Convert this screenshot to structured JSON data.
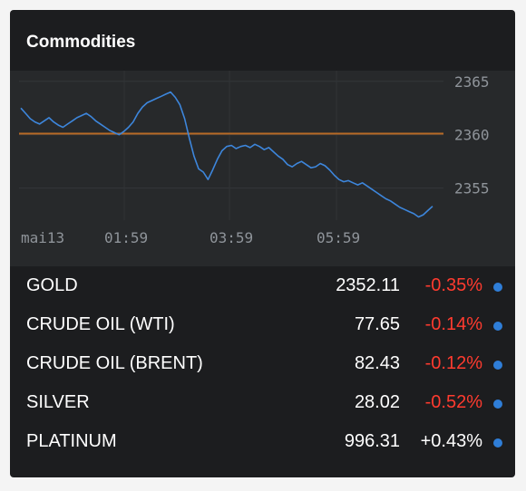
{
  "widget": {
    "title": "Commodities"
  },
  "colors": {
    "line": "#3d86dc",
    "reference": "#b86a26",
    "negative": "#ff3b2f",
    "positive": "#ffffff",
    "dot": "#2f7ed8"
  },
  "chart_data": {
    "type": "line",
    "ylim": [
      2352,
      2366
    ],
    "y_ticks": [
      "2365",
      "2360",
      "2355"
    ],
    "x_ticks": [
      "mai13",
      "01:59",
      "03:59",
      "05:59"
    ],
    "reference_value": 2360.1,
    "series": [
      {
        "values": [
          2362.5,
          2362.0,
          2361.5,
          2361.2,
          2361.0,
          2361.3,
          2361.6,
          2361.2,
          2360.9,
          2360.7,
          2361.0,
          2361.3,
          2361.6,
          2361.8,
          2362.0,
          2361.7,
          2361.3,
          2361.0,
          2360.7,
          2360.4,
          2360.2,
          2360.0,
          2360.3,
          2360.7,
          2361.2,
          2362.0,
          2362.6,
          2363.0,
          2363.2,
          2363.4,
          2363.6,
          2363.8,
          2364.0,
          2363.5,
          2362.8,
          2361.5,
          2359.7,
          2358.0,
          2356.8,
          2356.5,
          2355.8,
          2356.7,
          2357.7,
          2358.5,
          2358.9,
          2359.0,
          2358.7,
          2358.9,
          2359.0,
          2358.8,
          2359.1,
          2358.9,
          2358.6,
          2358.8,
          2358.4,
          2358.0,
          2357.7,
          2357.2,
          2357.0,
          2357.3,
          2357.5,
          2357.2,
          2356.9,
          2357.0,
          2357.3,
          2357.1,
          2356.7,
          2356.2,
          2355.8,
          2355.6,
          2355.7,
          2355.5,
          2355.3,
          2355.5,
          2355.2,
          2354.9,
          2354.6,
          2354.3,
          2354.0,
          2353.8,
          2353.5,
          2353.2,
          2353.0,
          2352.8,
          2352.6,
          2352.3,
          2352.5,
          2352.9,
          2353.3
        ]
      }
    ]
  },
  "rows": [
    {
      "name": "GOLD",
      "price": "2352.11",
      "change": "-0.35%",
      "direction": "down"
    },
    {
      "name": "CRUDE OIL (WTI)",
      "price": "77.65",
      "change": "-0.14%",
      "direction": "down"
    },
    {
      "name": "CRUDE OIL (BRENT)",
      "price": "82.43",
      "change": "-0.12%",
      "direction": "down"
    },
    {
      "name": "SILVER",
      "price": "28.02",
      "change": "-0.52%",
      "direction": "down"
    },
    {
      "name": "PLATINUM",
      "price": "996.31",
      "change": "+0.43%",
      "direction": "up"
    }
  ]
}
